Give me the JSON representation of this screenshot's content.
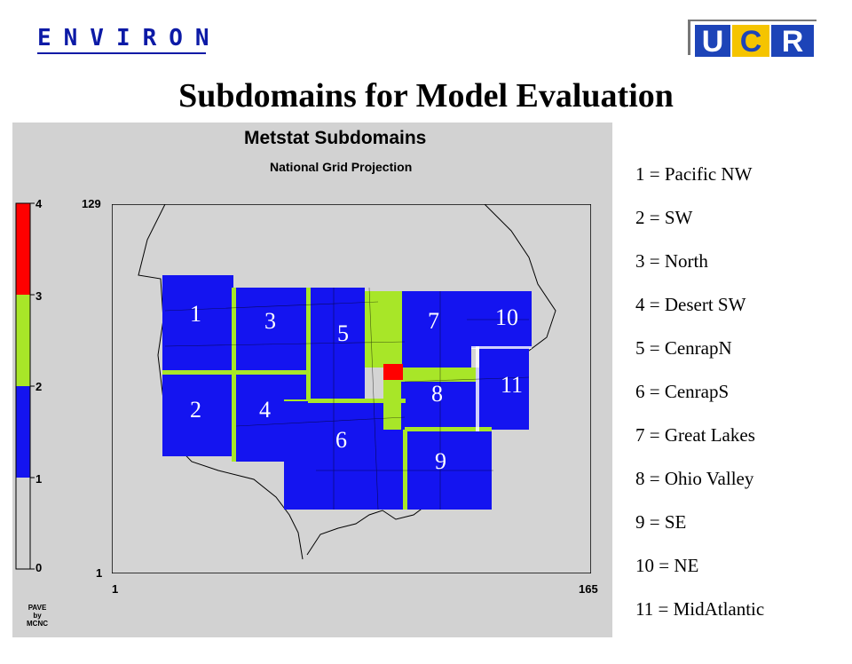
{
  "header": {
    "logo_text": "ENVIRON",
    "ucr_logo": {
      "letters": [
        "U",
        "C",
        "R"
      ],
      "colors": {
        "blue": "#1d44b8",
        "gold": "#f5c400"
      }
    }
  },
  "slide_title": "Subdomains for Model Evaluation",
  "panel": {
    "title": "Metstat Subdomains",
    "subtitle": "National Grid Projection",
    "grid_ticks": {
      "y_top": "129",
      "y_bottom": "1",
      "x_left": "1",
      "x_right": "165"
    },
    "colorbar": {
      "ticks": [
        "4",
        "3",
        "2",
        "1",
        "0"
      ],
      "colors": {
        "0-1": "#d2d2d2",
        "1-2": "#1414f0",
        "2-3": "#a8e628",
        "3-4": "#ff0000"
      }
    },
    "credit": [
      "PAVE",
      "by",
      "MCNC"
    ],
    "background_color": "#d2d2d2",
    "map_background_color": "#d4d4d4",
    "region_numbers": [
      "1",
      "2",
      "3",
      "4",
      "5",
      "6",
      "7",
      "8",
      "9",
      "10",
      "11"
    ]
  },
  "legend": [
    "1 = Pacific NW",
    "2 = SW",
    "3 = North",
    "4 = Desert SW",
    "5 = CenrapN",
    "6 = CenrapS",
    "7 = Great Lakes",
    "8 = Ohio Valley",
    "9 = SE",
    "10 = NE",
    "11 = MidAtlantic"
  ]
}
